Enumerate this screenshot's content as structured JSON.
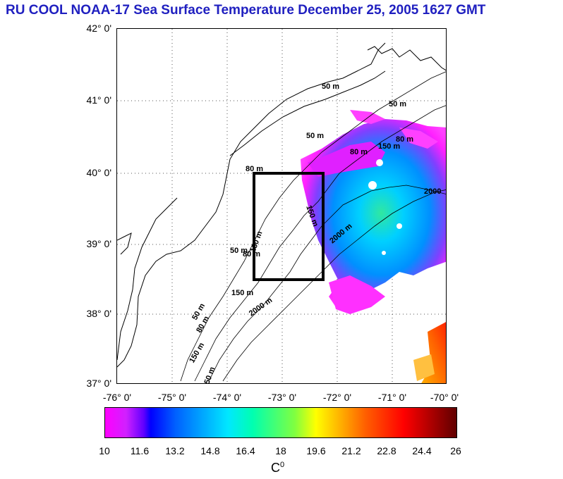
{
  "title": "RU COOL  NOAA-17 Sea Surface Temperature December 25, 2005 1627 GMT",
  "lat_labels": [
    "42° 0'",
    "41° 0'",
    "40° 0'",
    "39° 0'",
    "38° 0'",
    "37° 0'"
  ],
  "lon_labels": [
    "-76° 0'",
    "-75° 0'",
    "-74° 0'",
    "-73° 0'",
    "-72° 0'",
    "-71° 0'",
    "-70° 0'"
  ],
  "contour_labels": [
    "50 m",
    "50 m",
    "50 m",
    "80 m",
    "150 m",
    "80 m",
    "2000",
    "150 m",
    "2000 m",
    "50 m",
    "80 m",
    "150 m",
    "2000 m",
    "80 m",
    "150 m",
    "50 m",
    "80 m",
    "150 m",
    "50 m"
  ],
  "colorbar": {
    "ticks": [
      "10",
      "11.6",
      "13.2",
      "14.8",
      "16.4",
      "18",
      "19.6",
      "21.2",
      "22.8",
      "24.4",
      "26"
    ],
    "unit_base": "C",
    "unit_sup": "0"
  },
  "colors": {
    "title": "#2020c0",
    "box": "#000000",
    "coast": "#000000"
  }
}
